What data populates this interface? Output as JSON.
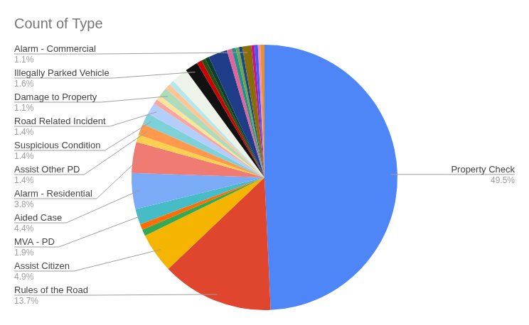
{
  "chart_data": {
    "type": "pie",
    "title": "Count of Type",
    "categories": [
      "Property Check",
      "Rules of the Road",
      "Assist Citizen",
      null,
      null,
      "MVA - PD",
      "Aided Case",
      "Alarm - Residential",
      null,
      "Assist Other PD",
      "Suspicious Condition",
      "Road Related Incident",
      null,
      null,
      "Damage to Property",
      null,
      null,
      null,
      "Illegally Parked Vehicle",
      null,
      null,
      null,
      null,
      null,
      null,
      null,
      null,
      "Alarm - Commercial",
      null,
      null,
      null,
      null
    ],
    "values": [
      49.5,
      13.7,
      4.9,
      0.8,
      0.7,
      1.9,
      4.4,
      3.8,
      0.9,
      1.4,
      1.4,
      1.4,
      0.6,
      0.6,
      1.1,
      0.7,
      0.6,
      2.0,
      1.6,
      0.6,
      0.5,
      0.5,
      2.3,
      0.6,
      0.5,
      0.4,
      0.4,
      1.1,
      0.4,
      0.4,
      0.3,
      0.5
    ],
    "value_labels": [
      "49.5%",
      "13.7%",
      "4.9%",
      null,
      null,
      "1.9%",
      "4.4%",
      "3.8%",
      null,
      "1.4%",
      "1.4%",
      "1.4%",
      null,
      null,
      "1.1%",
      null,
      null,
      null,
      "1.6%",
      null,
      null,
      null,
      null,
      null,
      null,
      null,
      null,
      "1.1%",
      null,
      null,
      null,
      null
    ],
    "colors": [
      "#4f86f7",
      "#e0452d",
      "#f4b400",
      "#34a853",
      "#ff6d01",
      "#46bdc6",
      "#7baaf7",
      "#f07b72",
      "#fcd04f",
      "#ff994d",
      "#7ed1d7",
      "#b3cefb",
      "#f7a7a0",
      "#fde49b",
      "#aedcba",
      "#ffc599",
      "#b5e8eb",
      "#eef3ea",
      "#111111",
      "#cc0000",
      "#274e13",
      "#0b3d2e",
      "#1f3c88",
      "#e06699",
      "#2e8b8b",
      "#6aa84f",
      "#1c4587",
      "#8a6d0b",
      "#c2188c",
      "#3d5afe",
      "#f48fb1",
      "#e69138"
    ],
    "data_labels": true
  }
}
